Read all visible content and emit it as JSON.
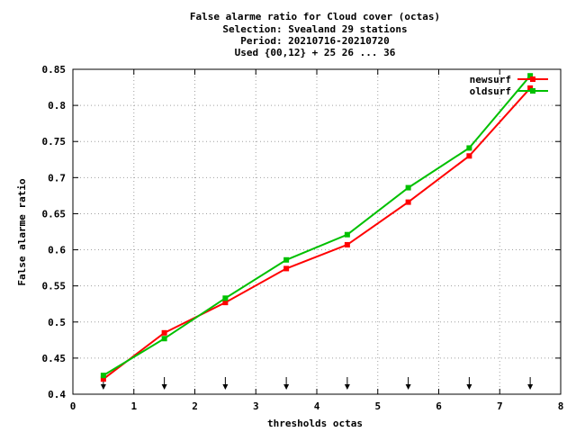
{
  "chart_data": {
    "type": "line",
    "title_lines": [
      "False alarme ratio  for Cloud cover (octas)",
      "Selection: Svealand     29 stations",
      "Period: 20210716-20210720",
      "Used {00,12} + 25 26 ... 36"
    ],
    "xlabel": "thresholds octas",
    "ylabel": "False alarme ratio",
    "xlim": [
      0,
      8
    ],
    "ylim": [
      0.4,
      0.85
    ],
    "x_ticks": [
      0,
      1,
      2,
      3,
      4,
      5,
      6,
      7,
      8
    ],
    "x_tick_labels": [
      "0",
      "1",
      "2",
      "3",
      "4",
      "5",
      "6",
      "7",
      "8"
    ],
    "y_ticks": [
      0.4,
      0.45,
      0.5,
      0.55,
      0.6,
      0.65,
      0.7,
      0.75,
      0.8,
      0.85
    ],
    "y_tick_labels": [
      "0.4",
      "0.45",
      "0.5",
      "0.55",
      "0.6",
      "0.65",
      "0.7",
      "0.75",
      "0.8",
      "0.85"
    ],
    "grid": true,
    "legend_position": "top-right",
    "threshold_markers_x": [
      0.5,
      1.5,
      2.5,
      3.5,
      4.5,
      5.5,
      6.5,
      7.5
    ],
    "series": [
      {
        "name": "newsurf",
        "color": "#ff0000",
        "x": [
          0.5,
          1.5,
          2.5,
          3.5,
          4.5,
          5.5,
          6.5,
          7.5
        ],
        "y": [
          0.421,
          0.485,
          0.527,
          0.574,
          0.607,
          0.666,
          0.73,
          0.824
        ]
      },
      {
        "name": "oldsurf",
        "color": "#00c000",
        "x": [
          0.5,
          1.5,
          2.5,
          3.5,
          4.5,
          5.5,
          6.5,
          7.5
        ],
        "y": [
          0.426,
          0.477,
          0.533,
          0.586,
          0.621,
          0.686,
          0.741,
          0.841
        ]
      }
    ]
  }
}
